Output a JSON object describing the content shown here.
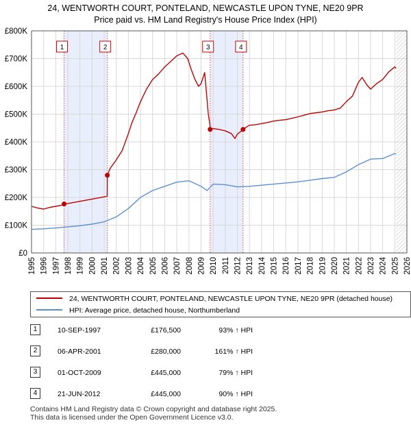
{
  "header": {
    "title_line1": "24, WENTWORTH COURT, PONTELAND, NEWCASTLE UPON TYNE, NE20 9PR",
    "title_line2": "Price paid vs. HM Land Registry's House Price Index (HPI)"
  },
  "colors": {
    "property": "#c00000",
    "hpi": "#5b8fd4",
    "shade": "#e8eefb",
    "marker_box": "#cc0000"
  },
  "legend": {
    "property_label": "24, WENTWORTH COURT, PONTELAND, NEWCASTLE UPON TYNE, NE20 9PR (detached house)",
    "hpi_label": "HPI: Average price, detached house, Northumberland"
  },
  "transactions": [
    {
      "num": "1",
      "date": "10-SEP-1997",
      "price": "£176,500",
      "hpi": "93% ↑ HPI"
    },
    {
      "num": "2",
      "date": "06-APR-2001",
      "price": "£280,000",
      "hpi": "161% ↑ HPI"
    },
    {
      "num": "3",
      "date": "01-OCT-2009",
      "price": "£445,000",
      "hpi": "79% ↑ HPI"
    },
    {
      "num": "4",
      "date": "21-JUN-2012",
      "price": "£445,000",
      "hpi": "90% ↑ HPI"
    }
  ],
  "footer": {
    "line1": "Contains HM Land Registry data © Crown copyright and database right 2025.",
    "line2": "This data is licensed under the Open Government Licence v3.0."
  },
  "chart_data": {
    "type": "line",
    "title": "24, WENTWORTH COURT, PONTELAND, NEWCASTLE UPON TYNE, NE20 9PR",
    "subtitle": "Price paid vs. HM Land Registry's House Price Index (HPI)",
    "xlabel": "",
    "ylabel": "",
    "xlim": [
      1995,
      2026
    ],
    "ylim": [
      0,
      800000
    ],
    "grid": true,
    "legend_position": "below",
    "x_ticks": [
      1995,
      1996,
      1997,
      1998,
      1999,
      2000,
      2001,
      2002,
      2003,
      2004,
      2005,
      2006,
      2007,
      2008,
      2009,
      2010,
      2011,
      2012,
      2013,
      2014,
      2015,
      2016,
      2017,
      2018,
      2019,
      2020,
      2021,
      2022,
      2023,
      2024,
      2025,
      2026
    ],
    "y_ticks": [
      0,
      100000,
      200000,
      300000,
      400000,
      500000,
      600000,
      700000,
      800000
    ],
    "y_tick_labels": [
      "£0",
      "£100K",
      "£200K",
      "£300K",
      "£400K",
      "£500K",
      "£600K",
      "£700K",
      "£800K"
    ],
    "shaded_ranges": [
      [
        1997.69,
        2001.26
      ],
      [
        2009.75,
        2012.47
      ]
    ],
    "future_hatch_from": 2025.1,
    "markers": [
      {
        "label": "1",
        "x": 1997.69,
        "y": 176500
      },
      {
        "label": "2",
        "x": 2001.26,
        "y": 280000
      },
      {
        "label": "3",
        "x": 2009.75,
        "y": 445000
      },
      {
        "label": "4",
        "x": 2012.47,
        "y": 445000
      }
    ],
    "series": [
      {
        "name": "24, WENTWORTH COURT, PONTELAND, NEWCASTLE UPON TYNE, NE20 9PR (detached house)",
        "x": [
          1995,
          1995.5,
          1996,
          1996.5,
          1997,
          1997.5,
          1997.69,
          1998,
          1998.5,
          1999,
          1999.5,
          2000,
          2000.5,
          2001,
          2001.25,
          2001.26,
          2001.5,
          2002,
          2002.5,
          2003,
          2003.3,
          2003.6,
          2004,
          2004.5,
          2005,
          2005.5,
          2006,
          2006.5,
          2007,
          2007.5,
          2007.9,
          2008.2,
          2008.5,
          2008.8,
          2009,
          2009.3,
          2009.6,
          2009.74,
          2009.75,
          2010,
          2010.5,
          2011,
          2011.5,
          2011.8,
          2012,
          2012.3,
          2012.47,
          2012.8,
          2013,
          2013.5,
          2014,
          2014.5,
          2015,
          2015.5,
          2016,
          2016.5,
          2017,
          2017.5,
          2018,
          2018.5,
          2019,
          2019.5,
          2020,
          2020.5,
          2021,
          2021.5,
          2022,
          2022.3,
          2022.7,
          2023,
          2023.5,
          2024,
          2024.5,
          2025,
          2025.1
        ],
        "values": [
          168000,
          162000,
          158000,
          164000,
          168000,
          172000,
          176500,
          178000,
          182000,
          186000,
          190000,
          194000,
          198000,
          202000,
          205000,
          280000,
          305000,
          335000,
          370000,
          430000,
          470000,
          500000,
          545000,
          590000,
          625000,
          645000,
          670000,
          690000,
          710000,
          720000,
          700000,
          660000,
          625000,
          600000,
          610000,
          650000,
          500000,
          460000,
          445000,
          448000,
          445000,
          440000,
          430000,
          412000,
          428000,
          438000,
          445000,
          455000,
          460000,
          462000,
          466000,
          470000,
          475000,
          478000,
          480000,
          485000,
          490000,
          496000,
          502000,
          505000,
          508000,
          512000,
          515000,
          522000,
          545000,
          565000,
          615000,
          632000,
          605000,
          590000,
          610000,
          625000,
          652000,
          670000,
          665000
        ]
      },
      {
        "name": "HPI: Average price, detached house, Northumberland",
        "x": [
          1995,
          1996,
          1997,
          1998,
          1999,
          2000,
          2001,
          2002,
          2003,
          2004,
          2005,
          2006,
          2007,
          2008,
          2009,
          2009.5,
          2010,
          2011,
          2012,
          2013,
          2014,
          2015,
          2016,
          2017,
          2018,
          2019,
          2020,
          2021,
          2022,
          2023,
          2024,
          2025,
          2025.1
        ],
        "values": [
          85000,
          87000,
          90000,
          94000,
          98000,
          104000,
          112000,
          130000,
          160000,
          200000,
          225000,
          240000,
          255000,
          260000,
          240000,
          225000,
          248000,
          246000,
          238000,
          240000,
          244000,
          248000,
          252000,
          256000,
          262000,
          268000,
          272000,
          292000,
          318000,
          338000,
          340000,
          358000,
          356000
        ]
      }
    ]
  }
}
